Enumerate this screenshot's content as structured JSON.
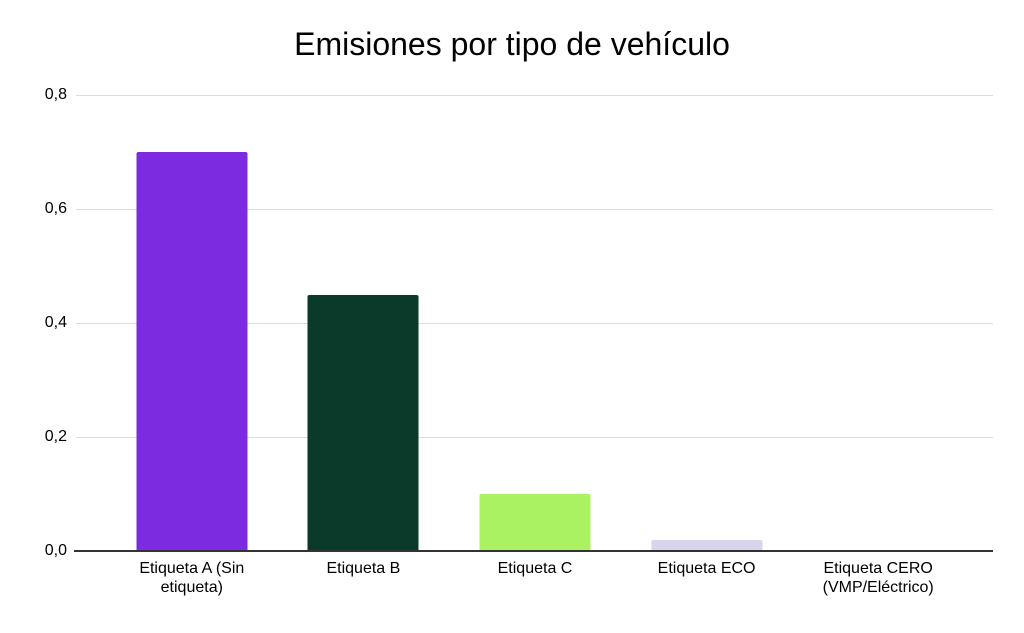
{
  "chart_data": {
    "type": "bar",
    "title": "Emisiones por tipo de vehículo",
    "categories": [
      "Etiqueta A (Sin etiqueta)",
      "Etiqueta B",
      "Etiqueta C",
      "Etiqueta ECO",
      "Etiqueta CERO (VMP/Eléctrico)"
    ],
    "values": [
      0.7,
      0.45,
      0.1,
      0.02,
      0
    ],
    "bar_colors": [
      "#7C2BE0",
      "#0A3B2A",
      "#AAF262",
      "#D9D3EC",
      null
    ],
    "yticks": [
      {
        "label": "0,0",
        "value": 0
      },
      {
        "label": "0,2",
        "value": 0.2
      },
      {
        "label": "0,4",
        "value": 0.4
      },
      {
        "label": "0,6",
        "value": 0.6
      },
      {
        "label": "0,8",
        "value": 0.8
      }
    ],
    "ylim": [
      0,
      0.8
    ],
    "xlabel": "",
    "ylabel": "",
    "grid": true,
    "legend": "none",
    "decimal_separator": ",",
    "background_color": "#FFFFFF",
    "axis_line_color": "#333333",
    "gridline_color": "#DCDCDC",
    "text_color": "#000000"
  }
}
